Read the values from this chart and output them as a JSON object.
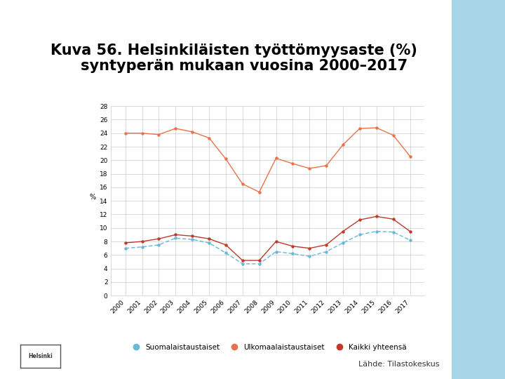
{
  "title_line1": "Kuva 56. Helsinkiläisten työttömyysaste (%)",
  "title_line2": "syntyperän mukaan vuosina 2000–2017",
  "ylabel": "%",
  "years": [
    2000,
    2001,
    2002,
    2003,
    2004,
    2005,
    2006,
    2007,
    2008,
    2009,
    2010,
    2011,
    2012,
    2013,
    2014,
    2015,
    2016,
    2017
  ],
  "suomalaistaustaiset": [
    7.0,
    7.2,
    7.5,
    8.5,
    8.3,
    7.8,
    6.3,
    4.7,
    4.7,
    6.5,
    6.2,
    5.8,
    6.5,
    7.8,
    9.0,
    9.5,
    9.4,
    8.2
  ],
  "ulkomaalaistaustaset": [
    24.0,
    24.0,
    23.8,
    24.7,
    24.2,
    23.3,
    20.2,
    16.5,
    15.3,
    20.3,
    19.5,
    18.8,
    19.2,
    22.3,
    24.7,
    24.8,
    23.7,
    20.6
  ],
  "kaikki_yhteensa": [
    7.8,
    8.0,
    8.4,
    9.0,
    8.8,
    8.4,
    7.5,
    5.2,
    5.2,
    8.0,
    7.3,
    7.0,
    7.5,
    9.5,
    11.2,
    11.7,
    11.3,
    9.5
  ],
  "color_suom": "#6ab7d8",
  "color_ulko": "#e8734a",
  "color_kaikki": "#c0392b",
  "ylim": [
    0,
    28
  ],
  "yticks": [
    0,
    2,
    4,
    6,
    8,
    10,
    12,
    14,
    16,
    18,
    20,
    22,
    24,
    26,
    28
  ],
  "source": "Lähde: Tilastokeskus",
  "legend_suom": "Suomalaistaustaiset",
  "legend_ulko": "Ulkomaalaistaustaiset",
  "legend_kaikki": "Kaikki yhteensä",
  "bg_color": "#ffffff",
  "right_bar_color": "#a8d4e8",
  "title_fontsize": 15,
  "tick_fontsize": 6.5,
  "legend_fontsize": 7.5,
  "source_fontsize": 8
}
